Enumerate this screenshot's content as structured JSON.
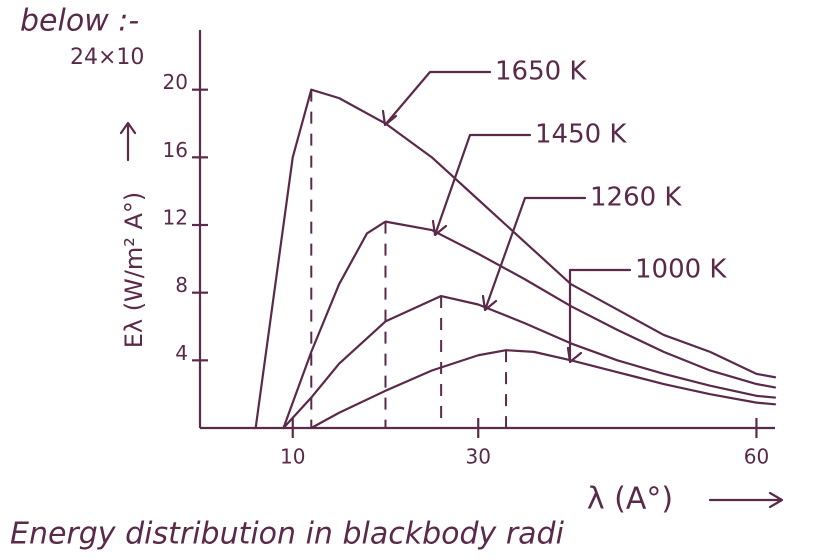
{
  "chart_data": {
    "type": "line",
    "heading": "below :-",
    "axis_note": "24×10",
    "y_label": "Eλ (W/m² A°)",
    "x_label": "λ (A°)",
    "caption": "Energy distribution in blackbody radi",
    "xlim": [
      0,
      62
    ],
    "ylim": [
      0,
      24
    ],
    "xticks": [
      10,
      30,
      60
    ],
    "yticks": [
      4,
      8,
      12,
      16,
      20
    ],
    "color": "#5a2a4a",
    "series": [
      {
        "name": "1650 K",
        "x": [
          6,
          8,
          10,
          12,
          15,
          20,
          25,
          30,
          35,
          40,
          45,
          50,
          55,
          60,
          62
        ],
        "values": [
          0,
          8,
          16,
          20,
          19.5,
          18,
          16,
          13.5,
          11,
          8.5,
          7,
          5.5,
          4.5,
          3.2,
          3
        ]
      },
      {
        "name": "1450 K",
        "x": [
          9,
          12,
          15,
          18,
          20,
          25,
          30,
          35,
          40,
          45,
          50,
          55,
          60,
          62
        ],
        "values": [
          0,
          4.5,
          8.5,
          11.5,
          12.2,
          11.7,
          10.3,
          8.8,
          7.2,
          5.8,
          4.5,
          3.4,
          2.6,
          2.4
        ]
      },
      {
        "name": "1260 K",
        "x": [
          9,
          12,
          15,
          20,
          26,
          30,
          35,
          40,
          45,
          50,
          55,
          60,
          62
        ],
        "values": [
          0,
          1.8,
          3.8,
          6.3,
          7.8,
          7.3,
          6.2,
          5,
          4,
          3.2,
          2.5,
          1.9,
          1.8
        ]
      },
      {
        "name": "1000 K",
        "x": [
          12,
          15,
          20,
          25,
          30,
          33,
          36,
          40,
          45,
          50,
          55,
          60,
          62
        ],
        "values": [
          0,
          0.9,
          2.2,
          3.4,
          4.3,
          4.6,
          4.5,
          4,
          3.3,
          2.6,
          2,
          1.5,
          1.4
        ]
      }
    ]
  }
}
